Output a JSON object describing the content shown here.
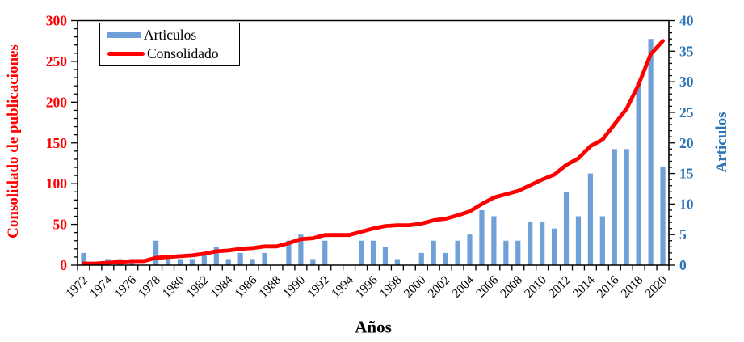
{
  "chart_data": {
    "type": "combo-bar-line",
    "title": "",
    "categories": [
      1972,
      1973,
      1974,
      1975,
      1976,
      1977,
      1978,
      1979,
      1980,
      1981,
      1982,
      1983,
      1984,
      1985,
      1986,
      1987,
      1988,
      1989,
      1990,
      1991,
      1992,
      1993,
      1994,
      1995,
      1996,
      1997,
      1998,
      1999,
      2000,
      2001,
      2002,
      2003,
      2004,
      2005,
      2006,
      2007,
      2008,
      2009,
      2010,
      2011,
      2012,
      2013,
      2014,
      2015,
      2016,
      2017,
      2018,
      2019,
      2020
    ],
    "series": [
      {
        "name": "Articulos",
        "type": "bar",
        "axis": "right",
        "color": "#6FA1D8",
        "values": [
          2,
          0,
          1,
          1,
          1,
          0,
          4,
          1,
          1,
          1,
          2,
          3,
          1,
          2,
          1,
          2,
          0,
          4,
          5,
          1,
          4,
          0,
          0,
          4,
          4,
          3,
          1,
          0,
          2,
          4,
          2,
          4,
          5,
          9,
          8,
          4,
          4,
          7,
          7,
          6,
          12,
          8,
          15,
          8,
          19,
          19,
          30,
          37,
          16
        ]
      },
      {
        "name": "Consolidado",
        "type": "line",
        "axis": "left",
        "color": "#FF0000",
        "values": [
          2,
          2,
          3,
          4,
          5,
          5,
          9,
          10,
          11,
          12,
          14,
          17,
          18,
          20,
          21,
          23,
          23,
          27,
          32,
          33,
          37,
          37,
          37,
          41,
          45,
          48,
          49,
          49,
          51,
          55,
          57,
          61,
          66,
          75,
          83,
          87,
          91,
          98,
          105,
          111,
          123,
          131,
          146,
          154,
          173,
          192,
          222,
          259,
          275
        ]
      }
    ],
    "x_axis": {
      "label": "Años",
      "tick_every_years": 1,
      "label_every_years": 2,
      "tick_label_rotation": -45,
      "tick_color": "#000000"
    },
    "left_axis": {
      "label": "Consolidado de publicaciones",
      "min": 0,
      "max": 300,
      "major_step": 50,
      "minor_step": 10,
      "color": "#FF0000"
    },
    "right_axis": {
      "label": "Articulos",
      "min": 0,
      "max": 40,
      "major_step": 5,
      "minor_step": 1,
      "color": "#2E75B6"
    },
    "legend": {
      "position": "top-left",
      "entries": [
        {
          "label": "Articulos",
          "swatch": "bar",
          "color": "#6FA1D8"
        },
        {
          "label": "Consolidado",
          "swatch": "line",
          "color": "#FF0000"
        }
      ]
    },
    "grid": false
  }
}
